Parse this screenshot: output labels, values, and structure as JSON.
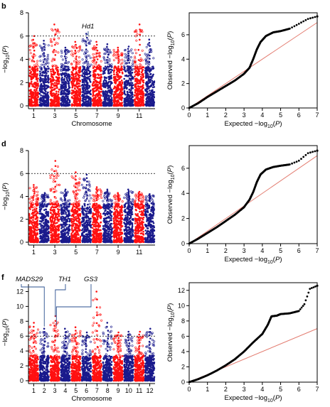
{
  "colors": {
    "red": "#ff1010",
    "blue": "#1a1a8c",
    "line": "#e37c70",
    "qq": "#000000",
    "threshold": "#000000"
  },
  "chart_data": [
    {
      "type": "scatter",
      "subtype": "manhattan",
      "panel": "b",
      "xlabel": "Chromosome",
      "ylabel": "−log10(P)",
      "ylim": [
        0,
        8
      ],
      "yticks": [
        0,
        2,
        4,
        6,
        8
      ],
      "xtick_labels": [
        "1",
        "3",
        "5",
        "7",
        "9",
        "11"
      ],
      "chromosomes": [
        1,
        2,
        3,
        4,
        5,
        6,
        7,
        8,
        9,
        10,
        11,
        12
      ],
      "threshold": 6,
      "peaks": [
        {
          "chromosome": 1,
          "value": 6.0
        },
        {
          "chromosome": 2,
          "value": 5.6
        },
        {
          "chromosome": 3,
          "value": 7.0
        },
        {
          "chromosome": 4,
          "value": 5.0
        },
        {
          "chromosome": 5,
          "value": 5.5
        },
        {
          "chromosome": 6,
          "value": 6.2
        },
        {
          "chromosome": 7,
          "value": 5.5
        },
        {
          "chromosome": 8,
          "value": 5.3
        },
        {
          "chromosome": 9,
          "value": 5.0
        },
        {
          "chromosome": 10,
          "value": 5.1
        },
        {
          "chromosome": 11,
          "value": 7.0
        },
        {
          "chromosome": 12,
          "value": 5.7
        }
      ],
      "annotations": [
        {
          "text": "Hd1",
          "chromosome": 6,
          "value": 6.1
        }
      ]
    },
    {
      "type": "scatter",
      "subtype": "qq",
      "panel": "b",
      "xlabel": "Expected −log10(P)",
      "ylabel": "Observed −log10(P)",
      "xlim": [
        0,
        7
      ],
      "ylim": [
        0,
        7.8
      ],
      "xticks": [
        0,
        1,
        2,
        3,
        4,
        5,
        6,
        7
      ],
      "yticks": [
        0,
        2,
        4,
        6
      ],
      "points": [
        [
          0,
          0
        ],
        [
          0.5,
          0.4
        ],
        [
          1,
          0.9
        ],
        [
          1.5,
          1.35
        ],
        [
          2,
          1.8
        ],
        [
          2.5,
          2.25
        ],
        [
          3,
          2.8
        ],
        [
          3.3,
          3.3
        ],
        [
          3.5,
          4.0
        ],
        [
          3.7,
          4.8
        ],
        [
          3.9,
          5.4
        ],
        [
          4.2,
          5.9
        ],
        [
          4.6,
          6.2
        ],
        [
          5,
          6.3
        ],
        [
          5.5,
          6.5
        ],
        [
          6,
          6.9
        ],
        [
          6.5,
          7.3
        ],
        [
          7,
          7.5
        ]
      ]
    },
    {
      "type": "scatter",
      "subtype": "manhattan",
      "panel": "d",
      "xlabel": "",
      "ylabel": "−log10(P)",
      "ylim": [
        0,
        8
      ],
      "yticks": [
        0,
        2,
        4,
        6,
        8
      ],
      "xtick_labels": [
        "1",
        "3",
        "5",
        "7",
        "9",
        "11"
      ],
      "chromosomes": [
        1,
        2,
        3,
        4,
        5,
        6,
        7,
        8,
        9,
        10,
        11,
        12
      ],
      "threshold": 6,
      "peaks": [
        {
          "chromosome": 1,
          "value": 5.0
        },
        {
          "chromosome": 2,
          "value": 4.3
        },
        {
          "chromosome": 3,
          "value": 7.1
        },
        {
          "chromosome": 4,
          "value": 4.6
        },
        {
          "chromosome": 5,
          "value": 6.1
        },
        {
          "chromosome": 6,
          "value": 5.9
        },
        {
          "chromosome": 7,
          "value": 4.8
        },
        {
          "chromosome": 8,
          "value": 4.6
        },
        {
          "chromosome": 9,
          "value": 4.3
        },
        {
          "chromosome": 10,
          "value": 4.6
        },
        {
          "chromosome": 11,
          "value": 4.4
        },
        {
          "chromosome": 12,
          "value": 4.2
        }
      ],
      "annotations": []
    },
    {
      "type": "scatter",
      "subtype": "qq",
      "panel": "d",
      "xlabel": "Expected −log10(P)",
      "ylabel": "Observed −log10(P)",
      "xlim": [
        0,
        7
      ],
      "ylim": [
        0,
        7.8
      ],
      "xticks": [
        0,
        1,
        2,
        3,
        4,
        5,
        6,
        7
      ],
      "yticks": [
        0,
        2,
        4,
        6
      ],
      "points": [
        [
          0,
          0
        ],
        [
          0.5,
          0.4
        ],
        [
          1,
          0.85
        ],
        [
          1.5,
          1.3
        ],
        [
          2,
          1.8
        ],
        [
          2.5,
          2.3
        ],
        [
          3,
          2.9
        ],
        [
          3.3,
          3.5
        ],
        [
          3.5,
          4.1
        ],
        [
          3.7,
          4.9
        ],
        [
          3.9,
          5.5
        ],
        [
          4.2,
          5.9
        ],
        [
          4.6,
          6.1
        ],
        [
          5,
          6.2
        ],
        [
          5.5,
          6.3
        ],
        [
          6,
          6.6
        ],
        [
          6.5,
          7.2
        ],
        [
          7,
          7.4
        ]
      ]
    },
    {
      "type": "scatter",
      "subtype": "manhattan",
      "panel": "f",
      "xlabel": "Chromosome",
      "ylabel": "−log10(P)",
      "ylim": [
        0,
        13
      ],
      "yticks": [
        0,
        2,
        4,
        6,
        8,
        10,
        12
      ],
      "xtick_labels": [
        "1",
        "2",
        "3",
        "4",
        "5",
        "6",
        "7",
        "8",
        "9",
        "10",
        "11",
        "12"
      ],
      "chromosomes": [
        1,
        2,
        3,
        4,
        5,
        6,
        7,
        8,
        9,
        10,
        11,
        12
      ],
      "threshold": 6,
      "peaks": [
        {
          "chromosome": 1,
          "value": 7.8
        },
        {
          "chromosome": 2,
          "value": 7.0
        },
        {
          "chromosome": 3,
          "value": 8.7
        },
        {
          "chromosome": 4,
          "value": 7.0
        },
        {
          "chromosome": 5,
          "value": 7.2
        },
        {
          "chromosome": 6,
          "value": 6.5
        },
        {
          "chromosome": 7,
          "value": 12.0
        },
        {
          "chromosome": 8,
          "value": 7.8
        },
        {
          "chromosome": 9,
          "value": 6.5
        },
        {
          "chromosome": 10,
          "value": 6.6
        },
        {
          "chromosome": 11,
          "value": 6.6
        },
        {
          "chromosome": 12,
          "value": 7.0
        }
      ],
      "annotations": [
        {
          "text": "MADS29",
          "chromosome": 2,
          "value": 7.3
        },
        {
          "text": "TH1",
          "chromosome": 3,
          "value": 8.6
        },
        {
          "text": "GS3",
          "chromosome": 3,
          "value": 7.4
        }
      ]
    },
    {
      "type": "scatter",
      "subtype": "qq",
      "panel": "f",
      "xlabel": "Expected −log10(P)",
      "ylabel": "Observed −log10(P)",
      "xlim": [
        0,
        7
      ],
      "ylim": [
        0,
        13
      ],
      "xticks": [
        0,
        1,
        2,
        3,
        4,
        5,
        6,
        7
      ],
      "yticks": [
        0,
        2,
        4,
        6,
        8,
        10,
        12
      ],
      "points": [
        [
          0,
          0
        ],
        [
          0.5,
          0.4
        ],
        [
          1,
          0.9
        ],
        [
          1.5,
          1.5
        ],
        [
          2,
          2.2
        ],
        [
          2.5,
          3.0
        ],
        [
          3,
          4.0
        ],
        [
          3.5,
          5.2
        ],
        [
          4,
          6.3
        ],
        [
          4.3,
          7.5
        ],
        [
          4.5,
          8.6
        ],
        [
          4.8,
          8.7
        ],
        [
          5,
          8.9
        ],
        [
          5.5,
          9.0
        ],
        [
          6,
          9.3
        ],
        [
          6.3,
          10.2
        ],
        [
          6.6,
          12.2
        ],
        [
          7,
          12.6
        ]
      ]
    }
  ]
}
